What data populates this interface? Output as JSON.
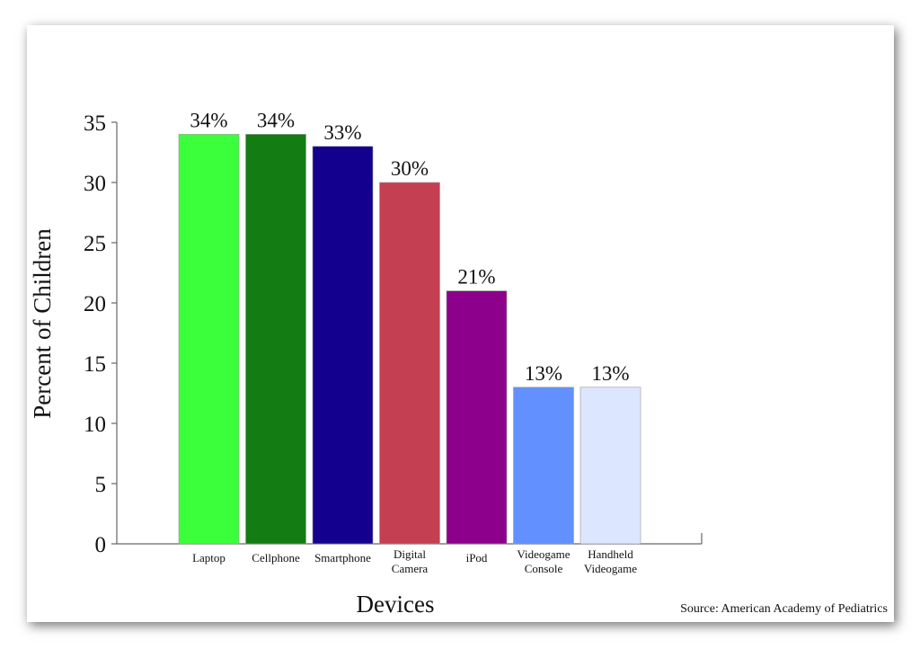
{
  "chart_data": {
    "type": "bar",
    "categories": [
      "Laptop",
      "Cellphone",
      "Smartphone",
      "Digital Camera",
      "iPod",
      "Videogame Console",
      "Handheld Videogame"
    ],
    "values": [
      34,
      34,
      33,
      30,
      21,
      13,
      13
    ],
    "value_labels": [
      "34%",
      "34%",
      "33%",
      "30%",
      "21%",
      "13%",
      "13%"
    ],
    "colors": [
      "#3cff3c",
      "#137c13",
      "#14008f",
      "#c43f52",
      "#8c008c",
      "#6291ff",
      "#dce6ff"
    ],
    "ylim": [
      0,
      35
    ],
    "yticks": [
      0,
      5,
      10,
      15,
      20,
      25,
      30,
      35
    ],
    "xlabel": "Devices",
    "ylabel": "Percent of Children",
    "source": "Source: American Academy of Pediatrics"
  }
}
